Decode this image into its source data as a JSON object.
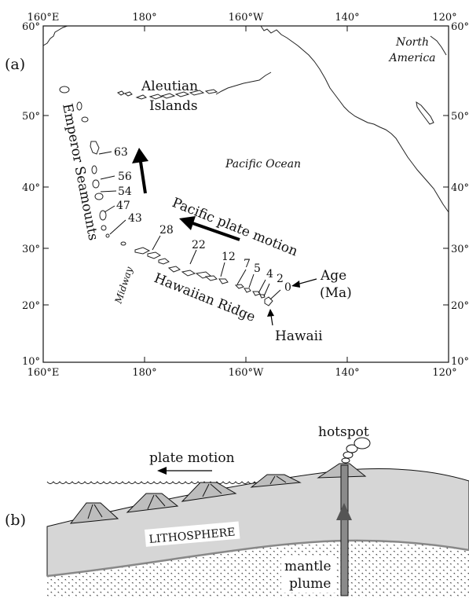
{
  "panel_a": {
    "label": "(a)",
    "ticks_top": [
      "160°E",
      "180°",
      "160°W",
      "140°",
      "120°"
    ],
    "ticks_bottom": [
      "160°E",
      "180°",
      "160°W",
      "140°",
      "120°"
    ],
    "ticks_left": [
      "60°",
      "50°",
      "40°",
      "30°",
      "20°",
      "10°"
    ],
    "ticks_right": [
      "60°",
      "50°",
      "40°",
      "30°",
      "20°",
      "10°"
    ],
    "north_america": [
      "North",
      "America"
    ],
    "aleutian": [
      "Aleutian",
      "Islands"
    ],
    "emperor": "Emperor Seamounts",
    "pacific_ocean": "Pacific Ocean",
    "plate_motion": "Pacific plate motion",
    "hawaiian_ridge": "Hawaiian Ridge",
    "midway": "Midway",
    "hawaii": "Hawaii",
    "age_label": [
      "Age",
      "(Ma)"
    ],
    "ages_emperor": [
      "63",
      "56",
      "54",
      "47",
      "43"
    ],
    "ages_hawaiian": [
      "28",
      "22",
      "12",
      "7",
      "5",
      "4",
      "2",
      "0"
    ]
  },
  "panel_b": {
    "label": "(b)",
    "hotspot": "hotspot",
    "plate_motion": "plate motion",
    "lithosphere": "LITHOSPHERE",
    "mantle_plume": [
      "mantle",
      "plume"
    ]
  }
}
